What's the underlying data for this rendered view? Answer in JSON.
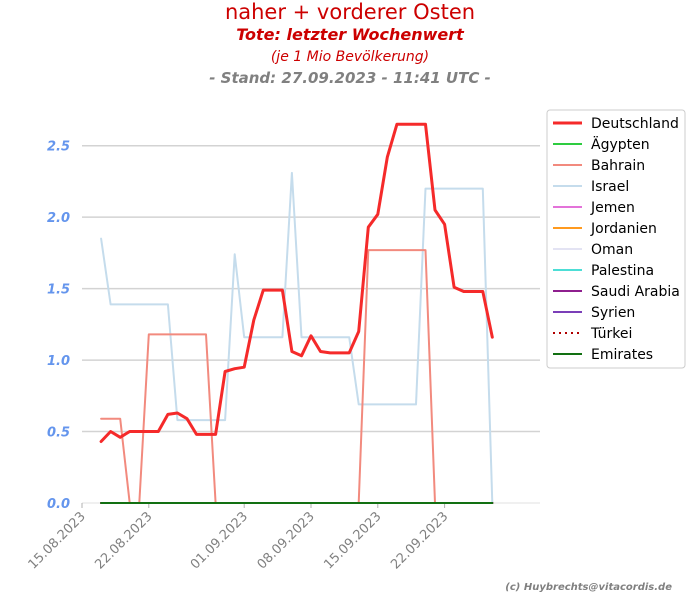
{
  "chart_data": {
    "type": "line",
    "title": "naher + vorderer Osten",
    "subtitle": "Tote: letzter Wochenwert",
    "subtitle2": "(je 1 Mio Bevölkerung)",
    "stand": "- Stand: 27.09.2023 - 11:41 UTC -",
    "credit": "(c) Huybrechts@vitacordis.de",
    "xlim": [
      "2023-08-15",
      "2023-10-02"
    ],
    "ylim": [
      0,
      2.75
    ],
    "grid": "horizontal",
    "legend_position": "upper-right-outside",
    "x_ticks": [
      {
        "date": "2023-08-15",
        "label": "15.08.2023"
      },
      {
        "date": "2023-08-22",
        "label": "22.08.2023"
      },
      {
        "date": "2023-09-01",
        "label": "01.09.2023"
      },
      {
        "date": "2023-09-08",
        "label": "08.09.2023"
      },
      {
        "date": "2023-09-15",
        "label": "15.09.2023"
      },
      {
        "date": "2023-09-22",
        "label": "22.09.2023"
      }
    ],
    "y_ticks": [
      {
        "value": 0.0,
        "label": "0.0"
      },
      {
        "value": 0.5,
        "label": "0.5"
      },
      {
        "value": 1.0,
        "label": "1.0"
      },
      {
        "value": 1.5,
        "label": "1.5"
      },
      {
        "value": 2.0,
        "label": "2.0"
      },
      {
        "value": 2.5,
        "label": "2.5"
      }
    ],
    "series": [
      {
        "name": "Deutschland",
        "color": "#f52a2a",
        "style": "solid",
        "width": 3,
        "draw_order": 11,
        "points": [
          [
            "2023-08-17",
            0.43
          ],
          [
            "2023-08-18",
            0.5
          ],
          [
            "2023-08-19",
            0.46
          ],
          [
            "2023-08-20",
            0.5
          ],
          [
            "2023-08-21",
            0.5
          ],
          [
            "2023-08-22",
            0.5
          ],
          [
            "2023-08-23",
            0.5
          ],
          [
            "2023-08-24",
            0.62
          ],
          [
            "2023-08-25",
            0.63
          ],
          [
            "2023-08-26",
            0.59
          ],
          [
            "2023-08-27",
            0.48
          ],
          [
            "2023-08-28",
            0.48
          ],
          [
            "2023-08-29",
            0.48
          ],
          [
            "2023-08-30",
            0.92
          ],
          [
            "2023-08-31",
            0.94
          ],
          [
            "2023-09-01",
            0.95
          ],
          [
            "2023-09-02",
            1.28
          ],
          [
            "2023-09-03",
            1.49
          ],
          [
            "2023-09-04",
            1.49
          ],
          [
            "2023-09-05",
            1.49
          ],
          [
            "2023-09-06",
            1.06
          ],
          [
            "2023-09-07",
            1.03
          ],
          [
            "2023-09-08",
            1.17
          ],
          [
            "2023-09-09",
            1.06
          ],
          [
            "2023-09-10",
            1.05
          ],
          [
            "2023-09-11",
            1.05
          ],
          [
            "2023-09-12",
            1.05
          ],
          [
            "2023-09-13",
            1.2
          ],
          [
            "2023-09-14",
            1.93
          ],
          [
            "2023-09-15",
            2.02
          ],
          [
            "2023-09-16",
            2.42
          ],
          [
            "2023-09-17",
            2.65
          ],
          [
            "2023-09-18",
            2.65
          ],
          [
            "2023-09-19",
            2.65
          ],
          [
            "2023-09-20",
            2.65
          ],
          [
            "2023-09-21",
            2.05
          ],
          [
            "2023-09-22",
            1.95
          ],
          [
            "2023-09-23",
            1.51
          ],
          [
            "2023-09-24",
            1.48
          ],
          [
            "2023-09-25",
            1.48
          ],
          [
            "2023-09-26",
            1.48
          ],
          [
            "2023-09-27",
            1.16
          ]
        ]
      },
      {
        "name": "Ägypten",
        "color": "#2ecc40",
        "style": "solid",
        "width": 2,
        "draw_order": 2,
        "points": [
          [
            "2023-08-17",
            0
          ],
          [
            "2023-09-27",
            0
          ]
        ]
      },
      {
        "name": "Bahrain",
        "color": "#f28a7e",
        "style": "solid",
        "width": 2,
        "draw_order": 3,
        "points": [
          [
            "2023-08-17",
            0.59
          ],
          [
            "2023-08-18",
            0.59
          ],
          [
            "2023-08-19",
            0.59
          ],
          [
            "2023-08-20",
            0
          ],
          [
            "2023-08-21",
            0
          ],
          [
            "2023-08-22",
            1.18
          ],
          [
            "2023-08-23",
            1.18
          ],
          [
            "2023-08-24",
            1.18
          ],
          [
            "2023-08-25",
            1.18
          ],
          [
            "2023-08-26",
            1.18
          ],
          [
            "2023-08-27",
            1.18
          ],
          [
            "2023-08-28",
            1.18
          ],
          [
            "2023-08-29",
            0
          ],
          [
            "2023-09-13",
            0
          ],
          [
            "2023-09-14",
            1.77
          ],
          [
            "2023-09-15",
            1.77
          ],
          [
            "2023-09-16",
            1.77
          ],
          [
            "2023-09-17",
            1.77
          ],
          [
            "2023-09-18",
            1.77
          ],
          [
            "2023-09-19",
            1.77
          ],
          [
            "2023-09-20",
            1.77
          ],
          [
            "2023-09-21",
            0
          ],
          [
            "2023-09-27",
            0
          ]
        ]
      },
      {
        "name": "Israel",
        "color": "#c5dcec",
        "style": "solid",
        "width": 2,
        "draw_order": 1,
        "points": [
          [
            "2023-08-17",
            1.85
          ],
          [
            "2023-08-18",
            1.39
          ],
          [
            "2023-08-19",
            1.39
          ],
          [
            "2023-08-20",
            1.39
          ],
          [
            "2023-08-21",
            1.39
          ],
          [
            "2023-08-22",
            1.39
          ],
          [
            "2023-08-23",
            1.39
          ],
          [
            "2023-08-24",
            1.39
          ],
          [
            "2023-08-25",
            0.58
          ],
          [
            "2023-08-26",
            0.58
          ],
          [
            "2023-08-27",
            0.58
          ],
          [
            "2023-08-28",
            0.58
          ],
          [
            "2023-08-29",
            0.58
          ],
          [
            "2023-08-30",
            0.58
          ],
          [
            "2023-08-31",
            1.74
          ],
          [
            "2023-09-01",
            1.16
          ],
          [
            "2023-09-02",
            1.16
          ],
          [
            "2023-09-03",
            1.16
          ],
          [
            "2023-09-04",
            1.16
          ],
          [
            "2023-09-05",
            1.16
          ],
          [
            "2023-09-06",
            2.31
          ],
          [
            "2023-09-07",
            1.16
          ],
          [
            "2023-09-08",
            1.16
          ],
          [
            "2023-09-09",
            1.16
          ],
          [
            "2023-09-10",
            1.16
          ],
          [
            "2023-09-11",
            1.16
          ],
          [
            "2023-09-12",
            1.16
          ],
          [
            "2023-09-13",
            0.69
          ],
          [
            "2023-09-14",
            0.69
          ],
          [
            "2023-09-15",
            0.69
          ],
          [
            "2023-09-16",
            0.69
          ],
          [
            "2023-09-17",
            0.69
          ],
          [
            "2023-09-18",
            0.69
          ],
          [
            "2023-09-19",
            0.69
          ],
          [
            "2023-09-20",
            2.2
          ],
          [
            "2023-09-21",
            2.2
          ],
          [
            "2023-09-22",
            2.2
          ],
          [
            "2023-09-23",
            2.2
          ],
          [
            "2023-09-24",
            2.2
          ],
          [
            "2023-09-25",
            2.2
          ],
          [
            "2023-09-26",
            2.2
          ],
          [
            "2023-09-27",
            0
          ]
        ]
      },
      {
        "name": "Jemen",
        "color": "#e373d9",
        "style": "solid",
        "width": 2,
        "draw_order": 4,
        "points": [
          [
            "2023-08-17",
            0
          ],
          [
            "2023-09-27",
            0
          ]
        ]
      },
      {
        "name": "Jordanien",
        "color": "#ff9a1f",
        "style": "solid",
        "width": 2,
        "draw_order": 5,
        "points": [
          [
            "2023-08-17",
            0
          ],
          [
            "2023-09-27",
            0
          ]
        ]
      },
      {
        "name": "Oman",
        "color": "#e3e3f3",
        "style": "solid",
        "width": 2,
        "draw_order": 0,
        "points": [
          [
            "2023-08-17",
            0
          ],
          [
            "2023-09-27",
            0
          ]
        ]
      },
      {
        "name": "Palestina",
        "color": "#4dded6",
        "style": "solid",
        "width": 2,
        "draw_order": 6,
        "points": [
          [
            "2023-08-17",
            0
          ],
          [
            "2023-09-27",
            0
          ]
        ]
      },
      {
        "name": "Saudi Arabia",
        "color": "#8e1f8e",
        "style": "solid",
        "width": 2,
        "draw_order": 7,
        "points": [
          [
            "2023-08-17",
            0
          ],
          [
            "2023-09-27",
            0
          ]
        ]
      },
      {
        "name": "Syrien",
        "color": "#7b3fb8",
        "style": "solid",
        "width": 2,
        "draw_order": 8,
        "points": [
          [
            "2023-08-17",
            0
          ],
          [
            "2023-09-27",
            0
          ]
        ]
      },
      {
        "name": "Türkei",
        "color": "#b00000",
        "style": "dotted",
        "width": 2,
        "draw_order": 9,
        "points": [
          [
            "2023-08-17",
            0
          ],
          [
            "2023-09-27",
            0
          ]
        ]
      },
      {
        "name": "Emirates",
        "color": "#127012",
        "style": "solid",
        "width": 2,
        "draw_order": 10,
        "points": [
          [
            "2023-08-17",
            0
          ],
          [
            "2023-09-27",
            0
          ]
        ]
      }
    ]
  },
  "colors": {
    "title": "#cc0000",
    "stand": "#808080",
    "y_tick_label": "#6495ed",
    "x_tick_label": "#808080",
    "grid": "#d3d3d3",
    "credit": "#808080"
  }
}
